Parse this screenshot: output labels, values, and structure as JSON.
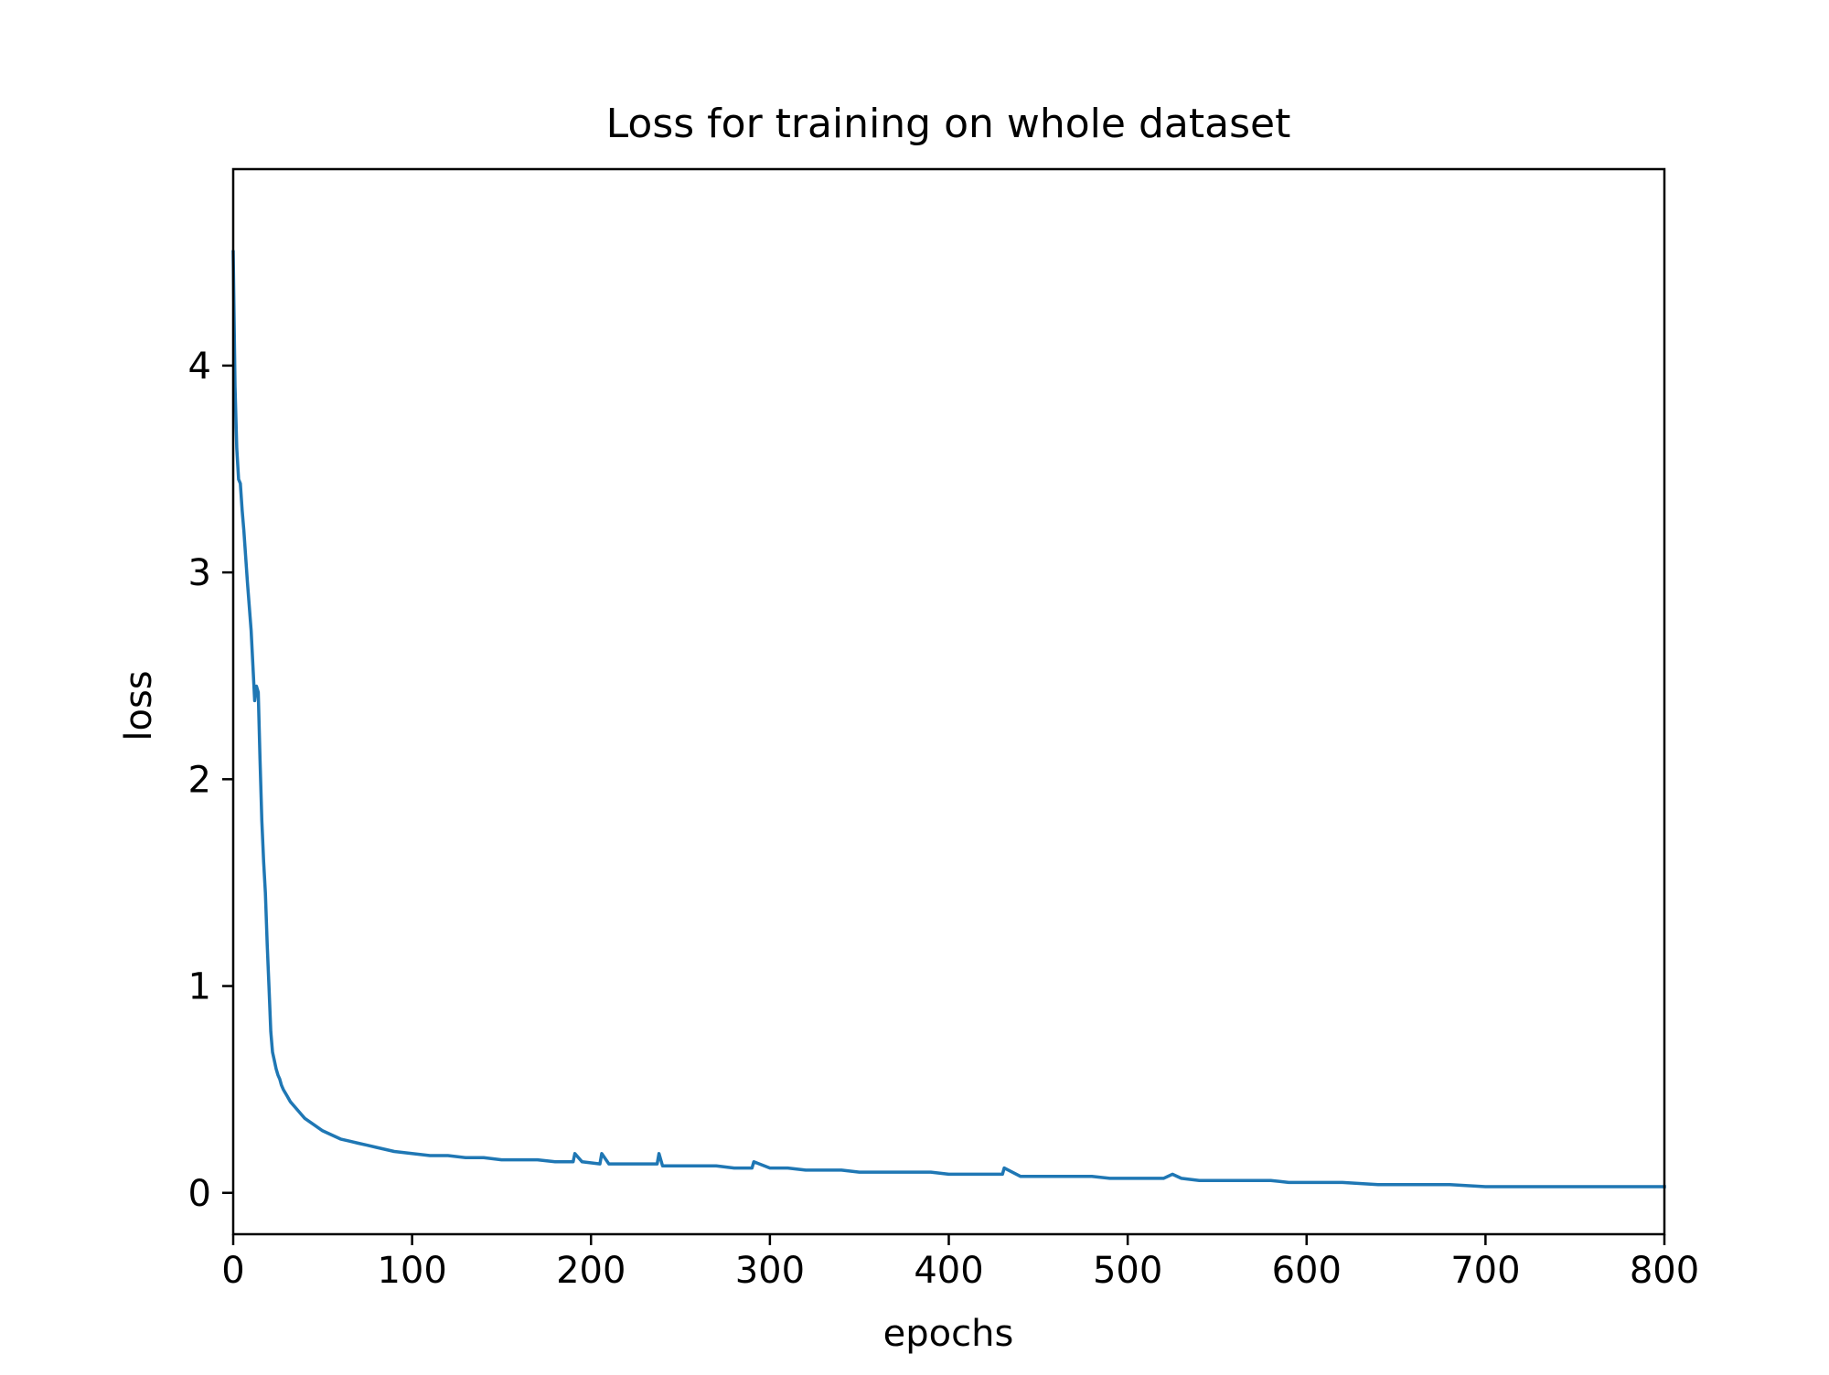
{
  "chart_data": {
    "type": "line",
    "title": "Loss for training on whole dataset",
    "xlabel": "epochs",
    "ylabel": "loss",
    "xlim": [
      0,
      800
    ],
    "ylim": [
      -0.2,
      4.95
    ],
    "x_ticks": [
      0,
      100,
      200,
      300,
      400,
      500,
      600,
      700,
      800
    ],
    "x_tick_labels": [
      "0",
      "100",
      "200",
      "300",
      "400",
      "500",
      "600",
      "700",
      "800"
    ],
    "y_ticks": [
      0,
      1,
      2,
      3,
      4
    ],
    "y_tick_labels": [
      "0",
      "1",
      "2",
      "3",
      "4"
    ],
    "grid": false,
    "legend": "none",
    "series": [
      {
        "color": "#1f77b4",
        "x": [
          0,
          1,
          2,
          3,
          4,
          5,
          6,
          8,
          10,
          12,
          13,
          14,
          15,
          16,
          17,
          18,
          19,
          20,
          21,
          22,
          23,
          24,
          25,
          26,
          27,
          28,
          30,
          32,
          35,
          38,
          40,
          45,
          50,
          55,
          60,
          65,
          70,
          75,
          80,
          90,
          100,
          110,
          120,
          130,
          140,
          150,
          160,
          170,
          180,
          190,
          191,
          195,
          205,
          206,
          210,
          220,
          230,
          237,
          238,
          240,
          250,
          260,
          270,
          280,
          290,
          291,
          300,
          310,
          320,
          330,
          340,
          350,
          360,
          370,
          380,
          390,
          400,
          410,
          420,
          430,
          431,
          440,
          450,
          460,
          470,
          480,
          490,
          500,
          510,
          520,
          525,
          530,
          540,
          550,
          560,
          570,
          580,
          590,
          600,
          620,
          640,
          660,
          680,
          700,
          720,
          740,
          760,
          780,
          800
        ],
        "y": [
          4.55,
          3.9,
          3.6,
          3.45,
          3.43,
          3.3,
          3.2,
          2.95,
          2.72,
          2.38,
          2.45,
          2.42,
          2.1,
          1.8,
          1.6,
          1.45,
          1.2,
          1.0,
          0.78,
          0.68,
          0.64,
          0.6,
          0.57,
          0.55,
          0.52,
          0.5,
          0.47,
          0.44,
          0.41,
          0.38,
          0.36,
          0.33,
          0.3,
          0.28,
          0.26,
          0.25,
          0.24,
          0.23,
          0.22,
          0.2,
          0.19,
          0.18,
          0.18,
          0.17,
          0.17,
          0.16,
          0.16,
          0.16,
          0.15,
          0.15,
          0.19,
          0.15,
          0.14,
          0.19,
          0.14,
          0.14,
          0.14,
          0.14,
          0.19,
          0.13,
          0.13,
          0.13,
          0.13,
          0.12,
          0.12,
          0.15,
          0.12,
          0.12,
          0.11,
          0.11,
          0.11,
          0.1,
          0.1,
          0.1,
          0.1,
          0.1,
          0.09,
          0.09,
          0.09,
          0.09,
          0.12,
          0.08,
          0.08,
          0.08,
          0.08,
          0.08,
          0.07,
          0.07,
          0.07,
          0.07,
          0.09,
          0.07,
          0.06,
          0.06,
          0.06,
          0.06,
          0.06,
          0.05,
          0.05,
          0.05,
          0.04,
          0.04,
          0.04,
          0.03,
          0.03,
          0.03,
          0.03,
          0.03,
          0.03
        ]
      }
    ]
  }
}
